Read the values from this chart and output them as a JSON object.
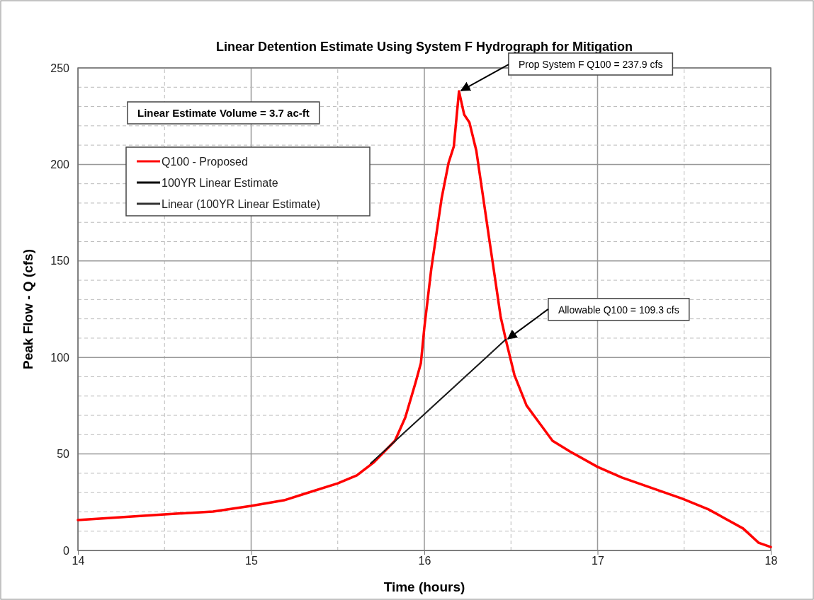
{
  "chart_data": {
    "type": "line",
    "title": "Linear Detention Estimate Using System F Hydrograph for Mitigation",
    "xlabel": "Time (hours)",
    "ylabel": "Peak Flow - Q (cfs)",
    "xlim": [
      14,
      18
    ],
    "xticks": [
      14,
      {
        "value": 14.5,
        "label": null
      },
      15,
      {
        "value": 15.5,
        "label": null
      },
      16,
      {
        "value": 16.5,
        "label": null
      },
      17,
      {
        "value": 17.5,
        "label": null
      },
      18
    ],
    "ylim": [
      0,
      250
    ],
    "yticks": [
      0,
      {
        "value": 10,
        "label": null
      },
      {
        "value": 20,
        "label": null
      },
      {
        "value": 30,
        "label": null
      },
      {
        "value": 40,
        "label": null
      },
      50,
      {
        "value": 60,
        "label": null
      },
      {
        "value": 70,
        "label": null
      },
      {
        "value": 80,
        "label": null
      },
      {
        "value": 90,
        "label": null
      },
      100,
      {
        "value": 110,
        "label": null
      },
      {
        "value": 120,
        "label": null
      },
      {
        "value": 130,
        "label": null
      },
      {
        "value": 140,
        "label": null
      },
      150,
      {
        "value": 160,
        "label": null
      },
      {
        "value": 170,
        "label": null
      },
      {
        "value": 180,
        "label": null
      },
      {
        "value": 190,
        "label": null
      },
      200,
      {
        "value": 210,
        "label": null
      },
      {
        "value": 220,
        "label": null
      },
      {
        "value": 230,
        "label": null
      },
      {
        "value": 240,
        "label": null
      },
      250
    ],
    "grid": true,
    "legend": "top left",
    "marker": "none",
    "line_style": "solid",
    "series": [
      {
        "name": "Q100 - Proposed",
        "color": "#ff0000",
        "x": [
          14.0,
          14.5,
          14.78,
          15.0,
          15.19,
          15.32,
          15.5,
          15.61,
          15.71,
          15.83,
          15.89,
          15.95,
          15.98,
          16.0,
          16.04,
          16.1,
          16.14,
          16.17,
          16.2,
          16.23,
          16.26,
          16.3,
          16.34,
          16.38,
          16.4,
          16.44,
          16.47,
          16.52,
          16.59,
          16.74,
          16.84,
          17.0,
          17.14,
          17.28,
          17.49,
          17.64,
          17.84,
          17.93,
          18.0
        ],
        "values": [
          15.8,
          18.7,
          20.2,
          23.1,
          26.0,
          29.7,
          34.8,
          38.9,
          45.8,
          56.8,
          68.9,
          87.2,
          97.1,
          115.5,
          145.9,
          182.6,
          200.9,
          209.3,
          237.9,
          225.8,
          221.8,
          207.1,
          182.6,
          158.0,
          145.9,
          121.3,
          109.3,
          90.9,
          75.1,
          56.8,
          51.3,
          43.3,
          37.8,
          33.4,
          26.8,
          21.3,
          11.4,
          4.0,
          1.8
        ]
      },
      {
        "name": "100YR Linear Estimate",
        "color": "#000000",
        "x": [
          15.69,
          16.47
        ],
        "values": [
          45.1,
          109.3
        ]
      },
      {
        "name": "Linear (100YR Linear Estimate)",
        "color": "#333333",
        "x": [
          15.69,
          16.47
        ],
        "values": [
          45.1,
          109.3
        ]
      }
    ],
    "annotations": [
      "Linear Estimate Volume = 3.7 ac-ft",
      {
        "text": "Prop System F Q100 = 237.9 cfs",
        "x": 16.2,
        "y": 237.9
      },
      {
        "text": "Allowable Q100 = 109.3 cfs",
        "x": 16.47,
        "y": 109.3
      }
    ]
  }
}
